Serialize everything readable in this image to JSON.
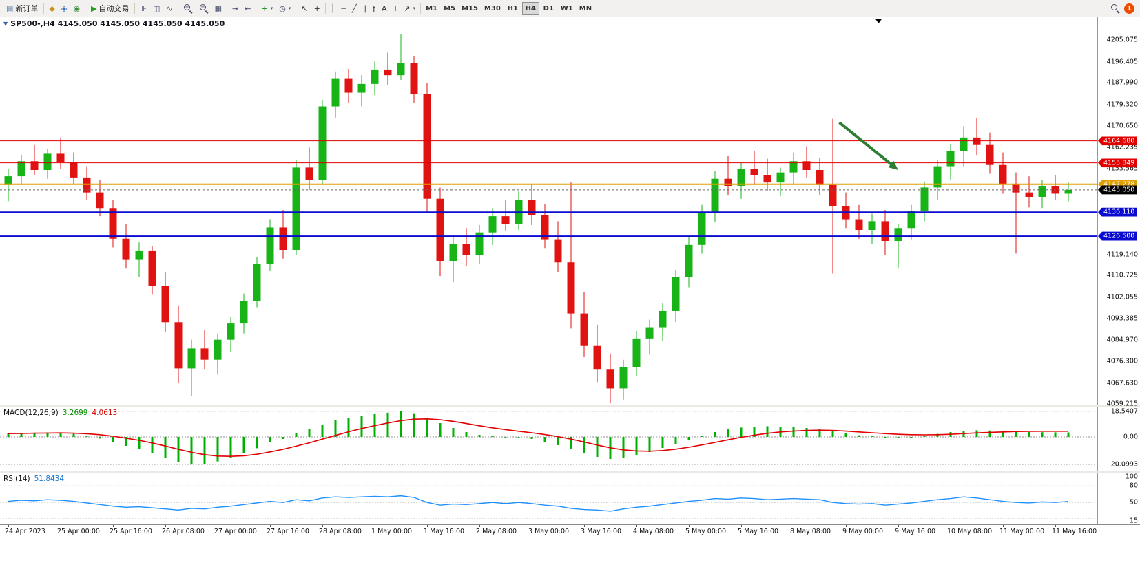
{
  "toolbar": {
    "new_order_label": "新订单",
    "new_order_icon_glyph": "▤",
    "algo_trading_label": "自动交易",
    "algo_icon_glyph": "▶",
    "caret_glyph": "▾",
    "timeframes": [
      "M1",
      "M5",
      "M15",
      "M30",
      "H1",
      "H4",
      "D1",
      "W1",
      "MN"
    ],
    "active_timeframe": "H4",
    "notification_count": "1",
    "groups": [
      {
        "items": [
          {
            "id": "market-watch",
            "glyph": "◆",
            "color": "#c2941c"
          },
          {
            "id": "data-window",
            "glyph": "◈",
            "color": "#2e6fba"
          },
          {
            "id": "navigator",
            "glyph": "◉",
            "color": "#3e8e3e"
          }
        ]
      },
      {
        "items": [
          {
            "id": "bar-chart",
            "glyph": "⊪",
            "color": "#47506e"
          },
          {
            "id": "candlestick-chart",
            "glyph": "◫",
            "color": "#47506e"
          },
          {
            "id": "line-chart",
            "glyph": "∿",
            "color": "#47506e"
          }
        ]
      },
      {
        "items": [
          {
            "id": "zoom-in",
            "mag": true,
            "sign": "+"
          },
          {
            "id": "zoom-out",
            "mag": true,
            "sign": "−"
          },
          {
            "id": "tile-windows",
            "glyph": "▦",
            "color": "#47506e"
          }
        ]
      },
      {
        "items": [
          {
            "id": "auto-scroll",
            "glyph": "⇥",
            "color": "#47506e"
          },
          {
            "id": "chart-shift",
            "glyph": "⇤",
            "color": "#47506e"
          }
        ]
      },
      {
        "items": [
          {
            "id": "new-chart",
            "glyph": "+",
            "color": "#1a8a1a",
            "caret": true
          },
          {
            "id": "period-selector",
            "glyph": "◷",
            "color": "#47506e",
            "caret": true
          }
        ]
      },
      {
        "items": [
          {
            "id": "cursor",
            "glyph": "↖",
            "color": "#333333"
          },
          {
            "id": "crosshair",
            "glyph": "+",
            "color": "#333333"
          }
        ]
      },
      {
        "items": [
          {
            "id": "vertical-line",
            "glyph": "│",
            "color": "#333333"
          },
          {
            "id": "horizontal-line",
            "glyph": "─",
            "color": "#333333"
          },
          {
            "id": "trendline",
            "glyph": "╱",
            "color": "#333333"
          },
          {
            "id": "equidistant-channel",
            "glyph": "∥",
            "color": "#333333"
          },
          {
            "id": "fibonacci",
            "glyph": "ƒ",
            "color": "#333333"
          },
          {
            "id": "text",
            "glyph": "A",
            "color": "#333333"
          },
          {
            "id": "label",
            "glyph": "T",
            "color": "#333333"
          },
          {
            "id": "arrow-objects",
            "glyph": "↗",
            "color": "#333333",
            "caret": true
          }
        ]
      }
    ]
  },
  "chart_data": {
    "type": "candlestick",
    "symbol": "SP500-",
    "timeframe": "H4",
    "title": "SP500-,H4",
    "title_marker_glyph": "▼",
    "ohlc_display": "4145.050 4145.050 4145.050 4145.050",
    "price_range": [
      4059.0,
      4214.2
    ],
    "colors": {
      "up": "#17b317",
      "down": "#e11212"
    },
    "candles": [
      [
        4147.0,
        4153.5,
        4140.5,
        4150.5
      ],
      [
        4150.5,
        4159.0,
        4147.0,
        4156.5
      ],
      [
        4156.5,
        4163.0,
        4151.0,
        4153.0
      ],
      [
        4153.0,
        4161.5,
        4149.5,
        4159.5
      ],
      [
        4159.5,
        4166.0,
        4153.5,
        4156.0
      ],
      [
        4156.0,
        4160.0,
        4147.5,
        4150.0
      ],
      [
        4150.0,
        4154.5,
        4141.0,
        4144.0
      ],
      [
        4144.0,
        4149.0,
        4134.5,
        4137.5
      ],
      [
        4137.5,
        4141.0,
        4122.0,
        4125.5
      ],
      [
        4125.5,
        4131.5,
        4113.5,
        4117.0
      ],
      [
        4117.0,
        4124.0,
        4110.0,
        4120.5
      ],
      [
        4120.5,
        4122.5,
        4103.0,
        4106.5
      ],
      [
        4106.5,
        4112.0,
        4088.0,
        4092.0
      ],
      [
        4092.0,
        4098.5,
        4067.5,
        4073.5
      ],
      [
        4073.5,
        4085.0,
        4062.5,
        4081.5
      ],
      [
        4081.5,
        4089.0,
        4073.0,
        4077.0
      ],
      [
        4077.0,
        4087.5,
        4071.0,
        4085.0
      ],
      [
        4085.0,
        4094.0,
        4080.0,
        4091.5
      ],
      [
        4091.5,
        4103.5,
        4087.5,
        4100.5
      ],
      [
        4100.5,
        4118.0,
        4098.0,
        4115.5
      ],
      [
        4115.5,
        4133.0,
        4112.5,
        4130.0
      ],
      [
        4130.0,
        4137.0,
        4117.5,
        4121.0
      ],
      [
        4121.0,
        4157.0,
        4119.0,
        4154.0
      ],
      [
        4154.0,
        4162.0,
        4145.0,
        4149.0
      ],
      [
        4149.0,
        4181.0,
        4147.0,
        4178.5
      ],
      [
        4178.5,
        4192.5,
        4174.0,
        4189.5
      ],
      [
        4189.5,
        4193.5,
        4180.0,
        4184.0
      ],
      [
        4184.0,
        4191.0,
        4178.5,
        4187.5
      ],
      [
        4187.5,
        4196.5,
        4183.0,
        4193.0
      ],
      [
        4193.0,
        4200.0,
        4187.0,
        4191.0
      ],
      [
        4191.0,
        4207.5,
        4189.0,
        4196.0
      ],
      [
        4196.0,
        4198.5,
        4180.0,
        4183.5
      ],
      [
        4183.5,
        4188.0,
        4136.0,
        4141.5
      ],
      [
        4141.5,
        4146.0,
        4110.5,
        4116.5
      ],
      [
        4116.5,
        4127.0,
        4108.0,
        4123.5
      ],
      [
        4123.5,
        4129.5,
        4114.5,
        4119.0
      ],
      [
        4119.0,
        4131.0,
        4115.5,
        4128.0
      ],
      [
        4128.0,
        4137.5,
        4123.0,
        4134.5
      ],
      [
        4134.5,
        4141.0,
        4128.5,
        4131.5
      ],
      [
        4131.5,
        4144.5,
        4129.0,
        4141.0
      ],
      [
        4141.0,
        4147.5,
        4131.0,
        4135.0
      ],
      [
        4135.0,
        4139.5,
        4121.5,
        4125.0
      ],
      [
        4125.0,
        4132.5,
        4112.0,
        4116.0
      ],
      [
        4116.0,
        4148.0,
        4089.5,
        4095.5
      ],
      [
        4095.5,
        4104.0,
        4078.0,
        4082.5
      ],
      [
        4082.5,
        4091.0,
        4068.0,
        4073.0
      ],
      [
        4073.0,
        4079.5,
        4059.5,
        4065.5
      ],
      [
        4065.5,
        4077.0,
        4061.0,
        4074.0
      ],
      [
        4074.0,
        4088.5,
        4070.5,
        4085.5
      ],
      [
        4085.5,
        4093.0,
        4079.0,
        4090.0
      ],
      [
        4090.0,
        4099.5,
        4084.5,
        4096.5
      ],
      [
        4096.5,
        4113.0,
        4092.0,
        4110.0
      ],
      [
        4110.0,
        4126.5,
        4106.0,
        4123.0
      ],
      [
        4123.0,
        4139.0,
        4119.5,
        4136.0
      ],
      [
        4136.0,
        4152.5,
        4132.0,
        4149.5
      ],
      [
        4149.5,
        4158.5,
        4143.0,
        4146.5
      ],
      [
        4146.5,
        4156.0,
        4141.5,
        4153.5
      ],
      [
        4153.5,
        4160.5,
        4147.0,
        4151.0
      ],
      [
        4151.0,
        4157.5,
        4144.5,
        4148.0
      ],
      [
        4148.0,
        4154.0,
        4142.5,
        4152.0
      ],
      [
        4152.0,
        4160.0,
        4147.5,
        4156.5
      ],
      [
        4156.5,
        4162.5,
        4150.0,
        4153.0
      ],
      [
        4153.0,
        4158.0,
        4143.0,
        4147.0
      ],
      [
        4147.0,
        4173.5,
        4111.5,
        4138.5
      ],
      [
        4138.5,
        4144.0,
        4129.5,
        4133.0
      ],
      [
        4133.0,
        4139.0,
        4125.5,
        4129.0
      ],
      [
        4129.0,
        4135.5,
        4123.5,
        4132.5
      ],
      [
        4132.5,
        4137.0,
        4119.0,
        4124.5
      ],
      [
        4124.5,
        4131.5,
        4113.5,
        4129.5
      ],
      [
        4129.5,
        4139.0,
        4125.0,
        4136.5
      ],
      [
        4136.5,
        4148.5,
        4132.5,
        4146.0
      ],
      [
        4146.0,
        4157.0,
        4141.0,
        4154.5
      ],
      [
        4154.5,
        4163.5,
        4149.0,
        4160.5
      ],
      [
        4160.5,
        4170.5,
        4154.5,
        4166.0
      ],
      [
        4166.0,
        4174.0,
        4159.0,
        4163.0
      ],
      [
        4163.0,
        4168.0,
        4151.5,
        4155.0
      ],
      [
        4155.0,
        4160.0,
        4143.5,
        4147.5
      ],
      [
        4147.5,
        4152.0,
        4119.5,
        4144.0
      ],
      [
        4144.0,
        4150.5,
        4138.0,
        4142.0
      ],
      [
        4142.0,
        4149.0,
        4137.5,
        4146.5
      ],
      [
        4146.5,
        4151.0,
        4141.0,
        4143.5
      ],
      [
        4143.5,
        4148.0,
        4140.5,
        4145.05
      ]
    ],
    "time_labels": [
      "24 Apr 2023",
      "25 Apr 00:00",
      "25 Apr 16:00",
      "26 Apr 08:00",
      "27 Apr 00:00",
      "27 Apr 16:00",
      "28 Apr 08:00",
      "1 May 00:00",
      "1 May 16:00",
      "2 May 08:00",
      "3 May 00:00",
      "3 May 16:00",
      "4 May 08:00",
      "5 May 00:00",
      "5 May 16:00",
      "8 May 08:00",
      "9 May 00:00",
      "9 May 16:00",
      "10 May 08:00",
      "11 May 00:00",
      "11 May 16:00"
    ],
    "label_every_n_bars": 4,
    "price_ticks": [
      "4205.075",
      "4196.405",
      "4187.990",
      "4179.320",
      "4170.650",
      "4162.235",
      "4153.565",
      "4119.140",
      "4110.725",
      "4102.055",
      "4093.385",
      "4084.970",
      "4076.300",
      "4067.630",
      "4059.215"
    ],
    "levels": [
      {
        "label": "4164.680",
        "value": 4164.68,
        "color": "#e00000",
        "width": 1
      },
      {
        "label": "4155.849",
        "value": 4155.849,
        "color": "#e00000",
        "width": 1
      },
      {
        "label": "4147.278",
        "value": 4147.278,
        "color": "#dea000",
        "width": 2
      },
      {
        "label": "4136.110",
        "value": 4136.11,
        "color": "#0b0bd0",
        "width": 2
      },
      {
        "label": "4126.500",
        "value": 4126.5,
        "color": "#0b0bd0",
        "width": 2
      }
    ],
    "current_price": {
      "label": "4145.050",
      "value": 4145.05,
      "color": "#000000"
    },
    "annotations": [
      {
        "type": "arrow",
        "from_bar": 63.5,
        "from_price": 4172.0,
        "to_bar": 68,
        "to_price": 4153.0,
        "color": "#2e7d32",
        "width": 4
      },
      {
        "type": "top-marker",
        "bar": 66.5,
        "color": "#000000"
      }
    ],
    "indicators": [
      {
        "name": "MACD",
        "label": "MACD(12,26,9)",
        "values_text": [
          "3.2699",
          "4.0613"
        ],
        "axis_ticks": [
          "18.5407",
          "0.00",
          "-20.0993"
        ],
        "range": [
          -24.5,
          21.5
        ],
        "histogram_color": "#00b000",
        "signal_color": "#e00000",
        "histogram": [
          2.5,
          2.8,
          3.0,
          3.2,
          3.0,
          2.2,
          0.8,
          -1.2,
          -3.8,
          -6.5,
          -9.0,
          -12.0,
          -15.5,
          -18.5,
          -20.1,
          -19.5,
          -17.8,
          -15.2,
          -12.0,
          -8.2,
          -4.0,
          -1.5,
          2.5,
          5.5,
          9.0,
          12.0,
          14.0,
          15.5,
          16.8,
          17.6,
          18.54,
          17.2,
          14.0,
          10.0,
          6.5,
          3.5,
          1.5,
          0.5,
          0.0,
          -0.5,
          -1.5,
          -3.5,
          -6.0,
          -9.0,
          -12.0,
          -14.5,
          -16.0,
          -15.5,
          -13.5,
          -11.0,
          -8.0,
          -5.0,
          -2.0,
          1.0,
          3.5,
          5.5,
          6.8,
          7.5,
          7.8,
          7.5,
          7.0,
          6.5,
          5.5,
          4.0,
          2.5,
          1.2,
          0.5,
          -0.2,
          -0.5,
          0.0,
          1.0,
          2.2,
          3.5,
          4.3,
          4.8,
          4.6,
          4.2,
          3.8,
          3.5,
          3.4,
          3.3,
          3.2699
        ],
        "signal": [
          2.4,
          2.5,
          2.7,
          2.8,
          2.9,
          2.7,
          2.3,
          1.6,
          0.5,
          -0.9,
          -2.5,
          -4.4,
          -6.6,
          -9.0,
          -11.2,
          -12.9,
          -13.9,
          -14.1,
          -13.7,
          -12.6,
          -10.9,
          -9.0,
          -6.7,
          -4.3,
          -1.6,
          1.1,
          3.7,
          6.1,
          8.2,
          10.1,
          11.8,
          12.9,
          13.1,
          12.5,
          11.3,
          9.7,
          8.1,
          6.6,
          5.3,
          4.1,
          3.0,
          1.7,
          0.2,
          -1.6,
          -3.7,
          -5.9,
          -7.9,
          -9.4,
          -10.2,
          -10.4,
          -9.9,
          -8.9,
          -7.5,
          -5.8,
          -4.0,
          -2.1,
          -0.3,
          1.3,
          2.6,
          3.6,
          4.2,
          4.7,
          4.9,
          4.7,
          4.2,
          3.6,
          3.0,
          2.4,
          1.9,
          1.6,
          1.5,
          1.6,
          1.9,
          2.4,
          2.9,
          3.3,
          3.6,
          3.9,
          4.05,
          4.1,
          4.1,
          4.0613
        ]
      },
      {
        "name": "RSI",
        "label": "RSI(14)",
        "value_text": "51.8434",
        "axis_ticks": [
          "100",
          "80",
          "50",
          "15"
        ],
        "range": [
          10,
          103
        ],
        "levels": [
          80,
          50,
          20
        ],
        "line_color": "#1e90ff",
        "values": [
          52,
          54,
          53,
          55,
          54,
          52,
          49,
          46,
          43,
          41,
          42,
          40,
          38,
          36,
          39,
          38,
          41,
          43,
          46,
          49,
          52,
          50,
          55,
          53,
          58,
          60,
          59,
          60,
          61,
          60,
          62,
          59,
          50,
          45,
          47,
          46,
          48,
          50,
          48,
          50,
          48,
          45,
          43,
          39,
          37,
          36,
          34,
          38,
          41,
          43,
          46,
          49,
          52,
          54,
          57,
          56,
          58,
          57,
          55,
          56,
          57,
          56,
          55,
          50,
          48,
          47,
          48,
          45,
          47,
          49,
          52,
          55,
          57,
          60,
          58,
          55,
          52,
          50,
          49,
          51,
          50,
          51.8434
        ]
      }
    ]
  }
}
